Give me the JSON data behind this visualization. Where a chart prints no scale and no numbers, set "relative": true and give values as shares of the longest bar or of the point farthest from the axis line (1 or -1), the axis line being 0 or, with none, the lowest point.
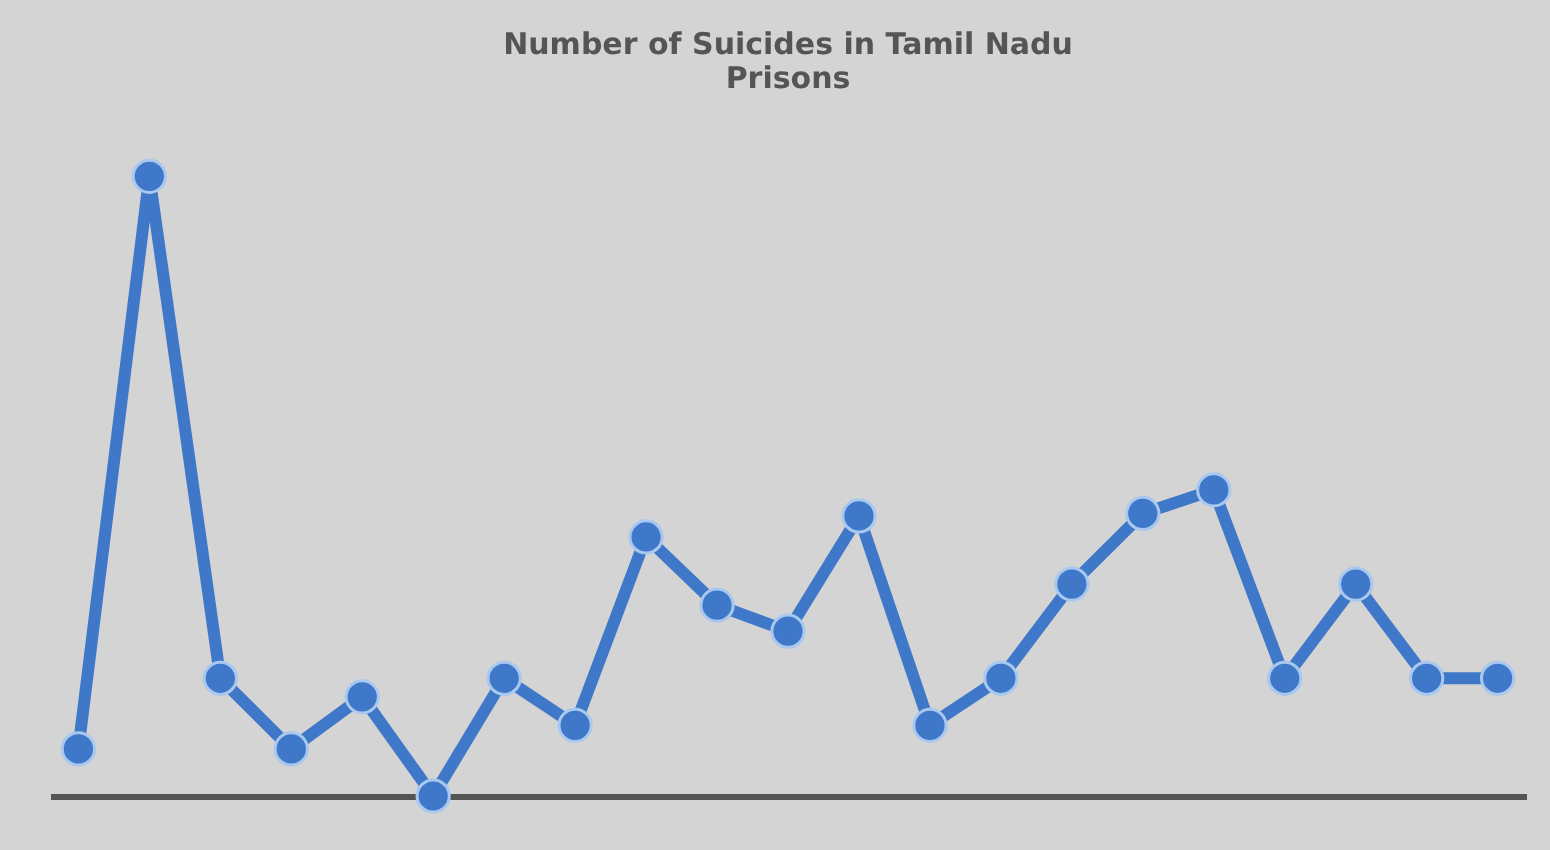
{
  "chart_data": {
    "type": "line",
    "title": "Number of Suicides in Tamil Nadu Prisons",
    "relative": true,
    "categories": [
      null,
      null,
      null,
      null,
      null,
      null,
      null,
      null,
      null,
      null,
      null,
      null,
      null,
      null,
      null,
      null,
      null,
      null,
      null,
      null,
      null
    ],
    "series": [
      {
        "color": "#3f78c8",
        "values": [
          0.076,
          1,
          0.19,
          0.076,
          0.16,
          0,
          0.19,
          0.114,
          0.418,
          0.308,
          0.266,
          0.452,
          0.114,
          0.19,
          0.342,
          0.456,
          0.494,
          0.19,
          0.342,
          0.19,
          0.19
        ]
      }
    ],
    "marker": "circle",
    "line_style": "solid",
    "grid": false,
    "legend": false
  }
}
